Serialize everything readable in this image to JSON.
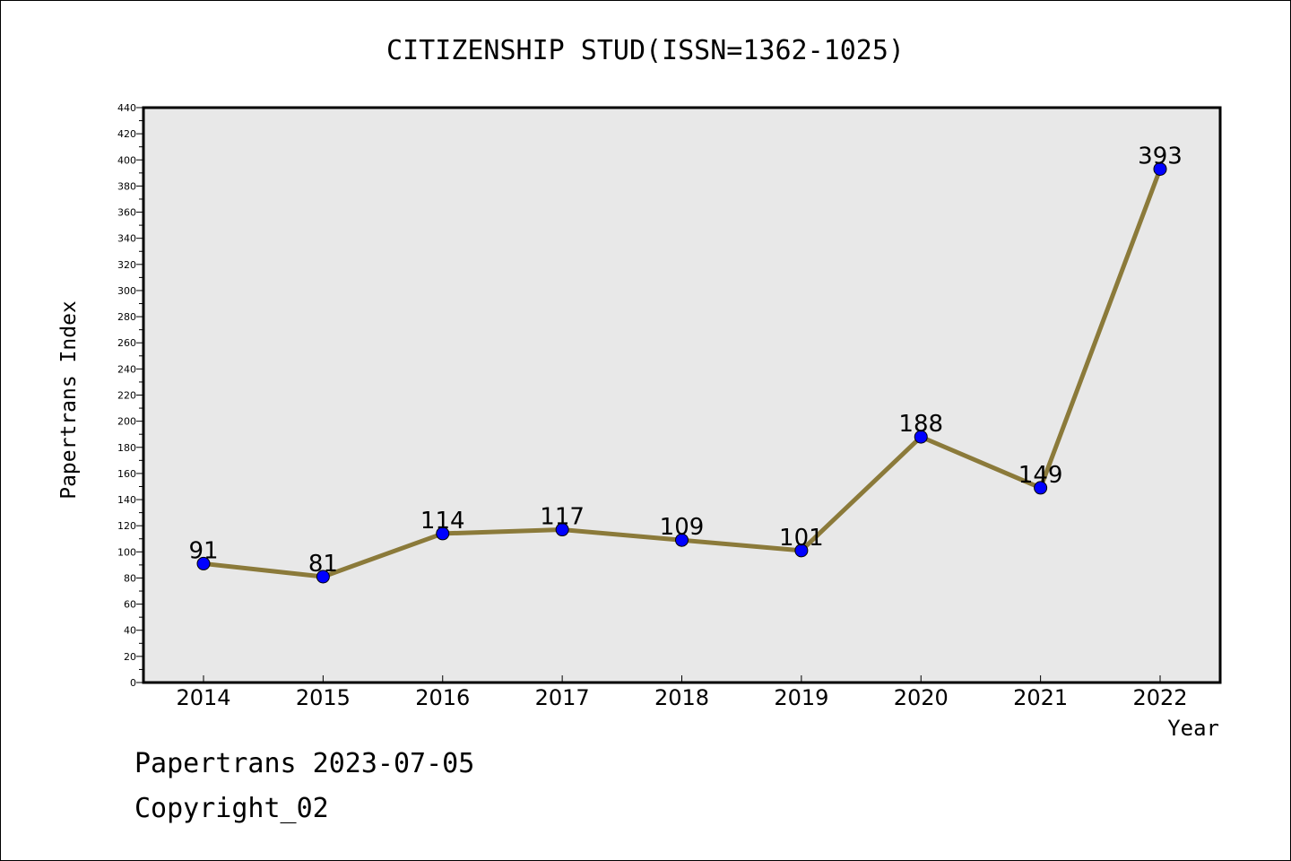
{
  "footer": {
    "line1": "Papertrans 2023-07-05",
    "line2": "Copyright_02"
  },
  "chart_data": {
    "type": "line",
    "title": "CITIZENSHIP STUD(ISSN=1362-1025)",
    "xlabel": "Year",
    "ylabel": "Papertrans Index",
    "categories": [
      "2014",
      "2015",
      "2016",
      "2017",
      "2018",
      "2019",
      "2020",
      "2021",
      "2022"
    ],
    "values": [
      91,
      81,
      114,
      117,
      109,
      101,
      188,
      149,
      393
    ],
    "ylim": [
      0,
      440
    ],
    "ytick_step": 20,
    "grid": false,
    "plot_background": "#e8e8e8",
    "line_color": "#8b7a3a",
    "marker_color": "#0000ff"
  }
}
